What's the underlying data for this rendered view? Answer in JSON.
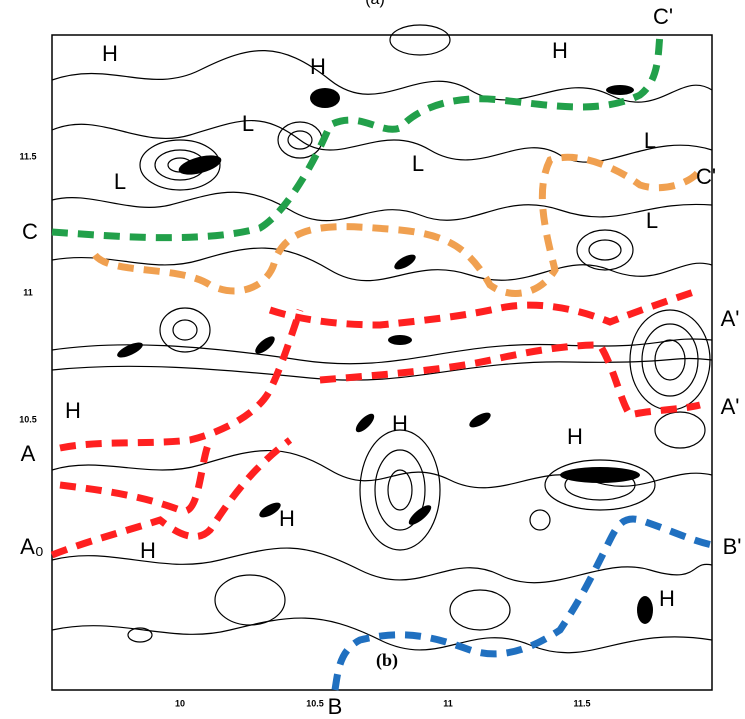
{
  "title": "(a)",
  "panel_label": "(b)",
  "axis": {
    "y_ticks": [
      "11.5",
      "11",
      "10.5"
    ],
    "x_ticks": [
      "10",
      "10.5",
      "11",
      "11.5"
    ]
  },
  "labels": {
    "highs": [
      "H",
      "H",
      "H",
      "H",
      "H",
      "H",
      "H",
      "H",
      "H"
    ],
    "lows": [
      "L",
      "L",
      "L",
      "L",
      "L"
    ],
    "sections": [
      "C",
      "C'",
      "C'",
      "A'",
      "A'",
      "A",
      "A₀",
      "B'",
      "B"
    ]
  }
}
